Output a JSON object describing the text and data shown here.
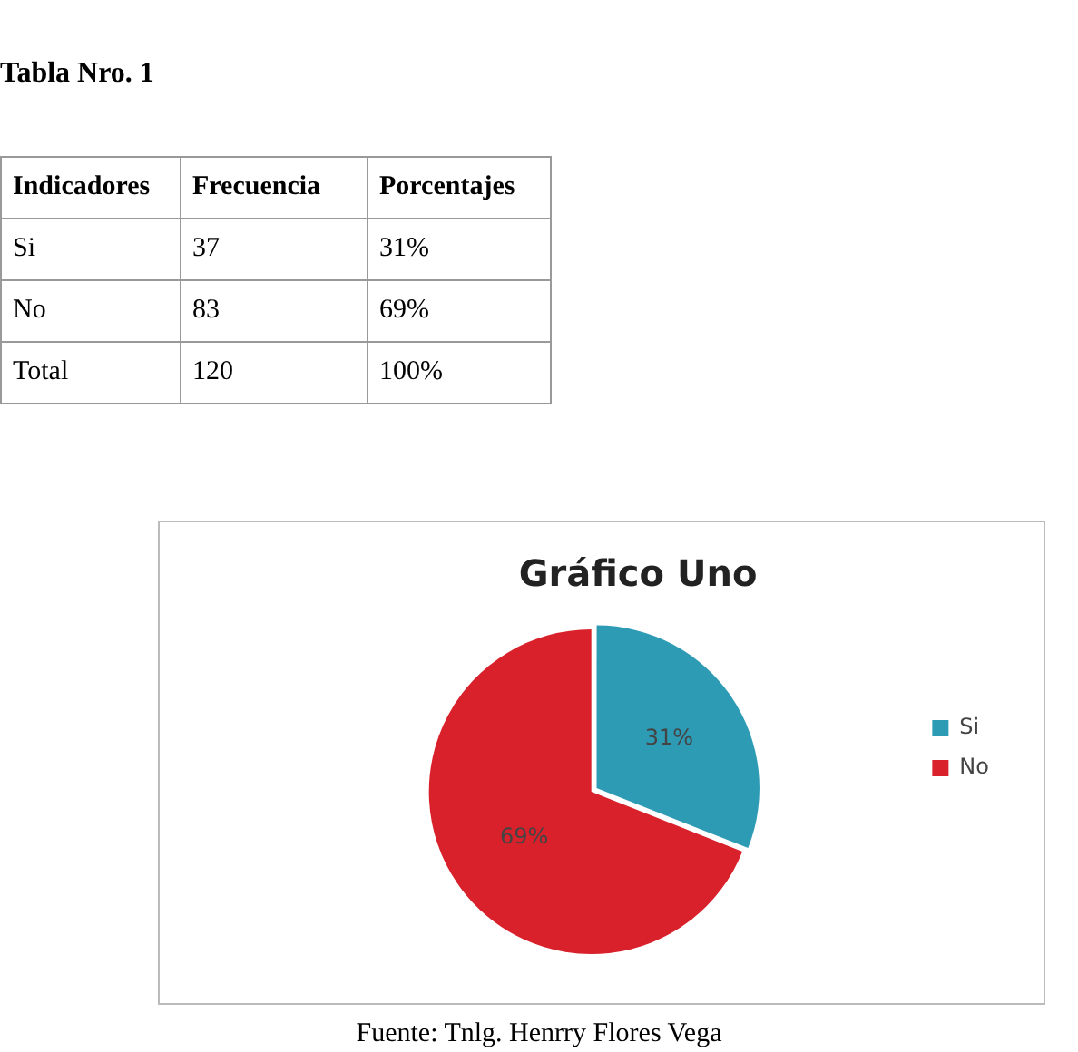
{
  "chart_data": {
    "type": "pie",
    "title": "Gráfico Uno",
    "categories": [
      "Si",
      "No"
    ],
    "values": [
      31,
      69
    ],
    "value_labels": [
      "31%",
      "69%"
    ],
    "colors": [
      "#2e9bb5",
      "#d9212b"
    ],
    "legend": "right",
    "annotations": [
      "Tabla Nro. 1",
      "Indicadores",
      "Frecuencia",
      "Porcentajes",
      "Si",
      "37",
      "31%",
      "No",
      "83",
      "69%",
      "Total",
      "120",
      "100%",
      "Fuente: Tnlg. Henrry Flores Vega"
    ]
  }
}
